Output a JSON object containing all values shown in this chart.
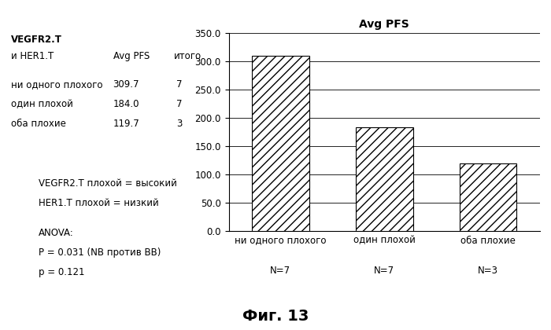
{
  "title": "Avg PFS",
  "categories": [
    "ни одного плохого",
    "один плохой",
    "оба плохие"
  ],
  "n_labels": [
    "N=7",
    "N=7",
    "N=3"
  ],
  "values": [
    309.7,
    184.0,
    119.7
  ],
  "ylim": [
    0,
    350
  ],
  "yticks": [
    0.0,
    50.0,
    100.0,
    150.0,
    200.0,
    250.0,
    300.0,
    350.0
  ],
  "bar_color": "#ffffff",
  "hatch": "///",
  "bar_edgecolor": "#000000",
  "background_color": "#ffffff",
  "table_header1": "VEGFR2.T",
  "table_header2": "и HER1.T",
  "table_header3": "Avg PFS",
  "table_header4": "итого",
  "table_rows": [
    [
      "ни одного плохого",
      "309.7",
      "7"
    ],
    [
      "один плохой",
      "184.0",
      "7"
    ],
    [
      "оба плохие",
      "119.7",
      "3"
    ]
  ],
  "note1": "VEGFR2.T плохой = высокий",
  "note2": "HER1.T плохой = низкий",
  "note3": "ANOVA:",
  "note4": "P = 0.031 (NB против BB)",
  "note5": "p = 0.121",
  "fig_label": "Фиг. 13",
  "title_fontsize": 10,
  "tick_fontsize": 8.5,
  "label_fontsize": 8.5,
  "note_fontsize": 8.5,
  "figlabel_fontsize": 14,
  "bar_width": 0.55
}
